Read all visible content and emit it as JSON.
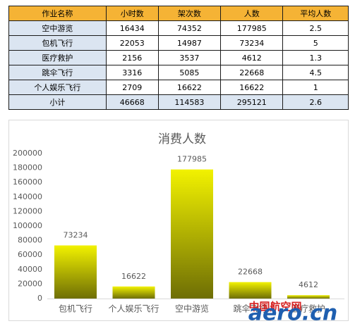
{
  "table": {
    "header": [
      "作业名称",
      "小时数",
      "架次数",
      "人数",
      "平均人数"
    ],
    "rows": [
      [
        "空中游览",
        16434,
        74352,
        177985,
        2.5
      ],
      [
        "包机飞行",
        22053,
        14987,
        73234,
        5
      ],
      [
        "医疗救护",
        2156,
        3537,
        4612,
        1.3
      ],
      [
        "跳伞飞行",
        3316,
        5085,
        22668,
        4.5
      ],
      [
        "个人娱乐飞行",
        2709,
        16622,
        16622,
        1
      ],
      [
        "小计",
        46668,
        114583,
        295121,
        2.6
      ]
    ]
  },
  "chart_data": {
    "type": "bar",
    "title": "消费人数",
    "categories": [
      "包机飞行",
      "个人娱乐飞行",
      "空中游览",
      "跳伞飞行",
      "医疗救护"
    ],
    "values": [
      73234,
      16622,
      177985,
      22668,
      4612
    ],
    "color": "#f2f200",
    "ylim": [
      0,
      200000
    ],
    "yticks": [
      0,
      20000,
      40000,
      60000,
      80000,
      100000,
      120000,
      140000,
      160000,
      180000,
      200000
    ]
  },
  "watermark": {
    "cn": "中国航空网",
    "en": "aero.cn"
  }
}
